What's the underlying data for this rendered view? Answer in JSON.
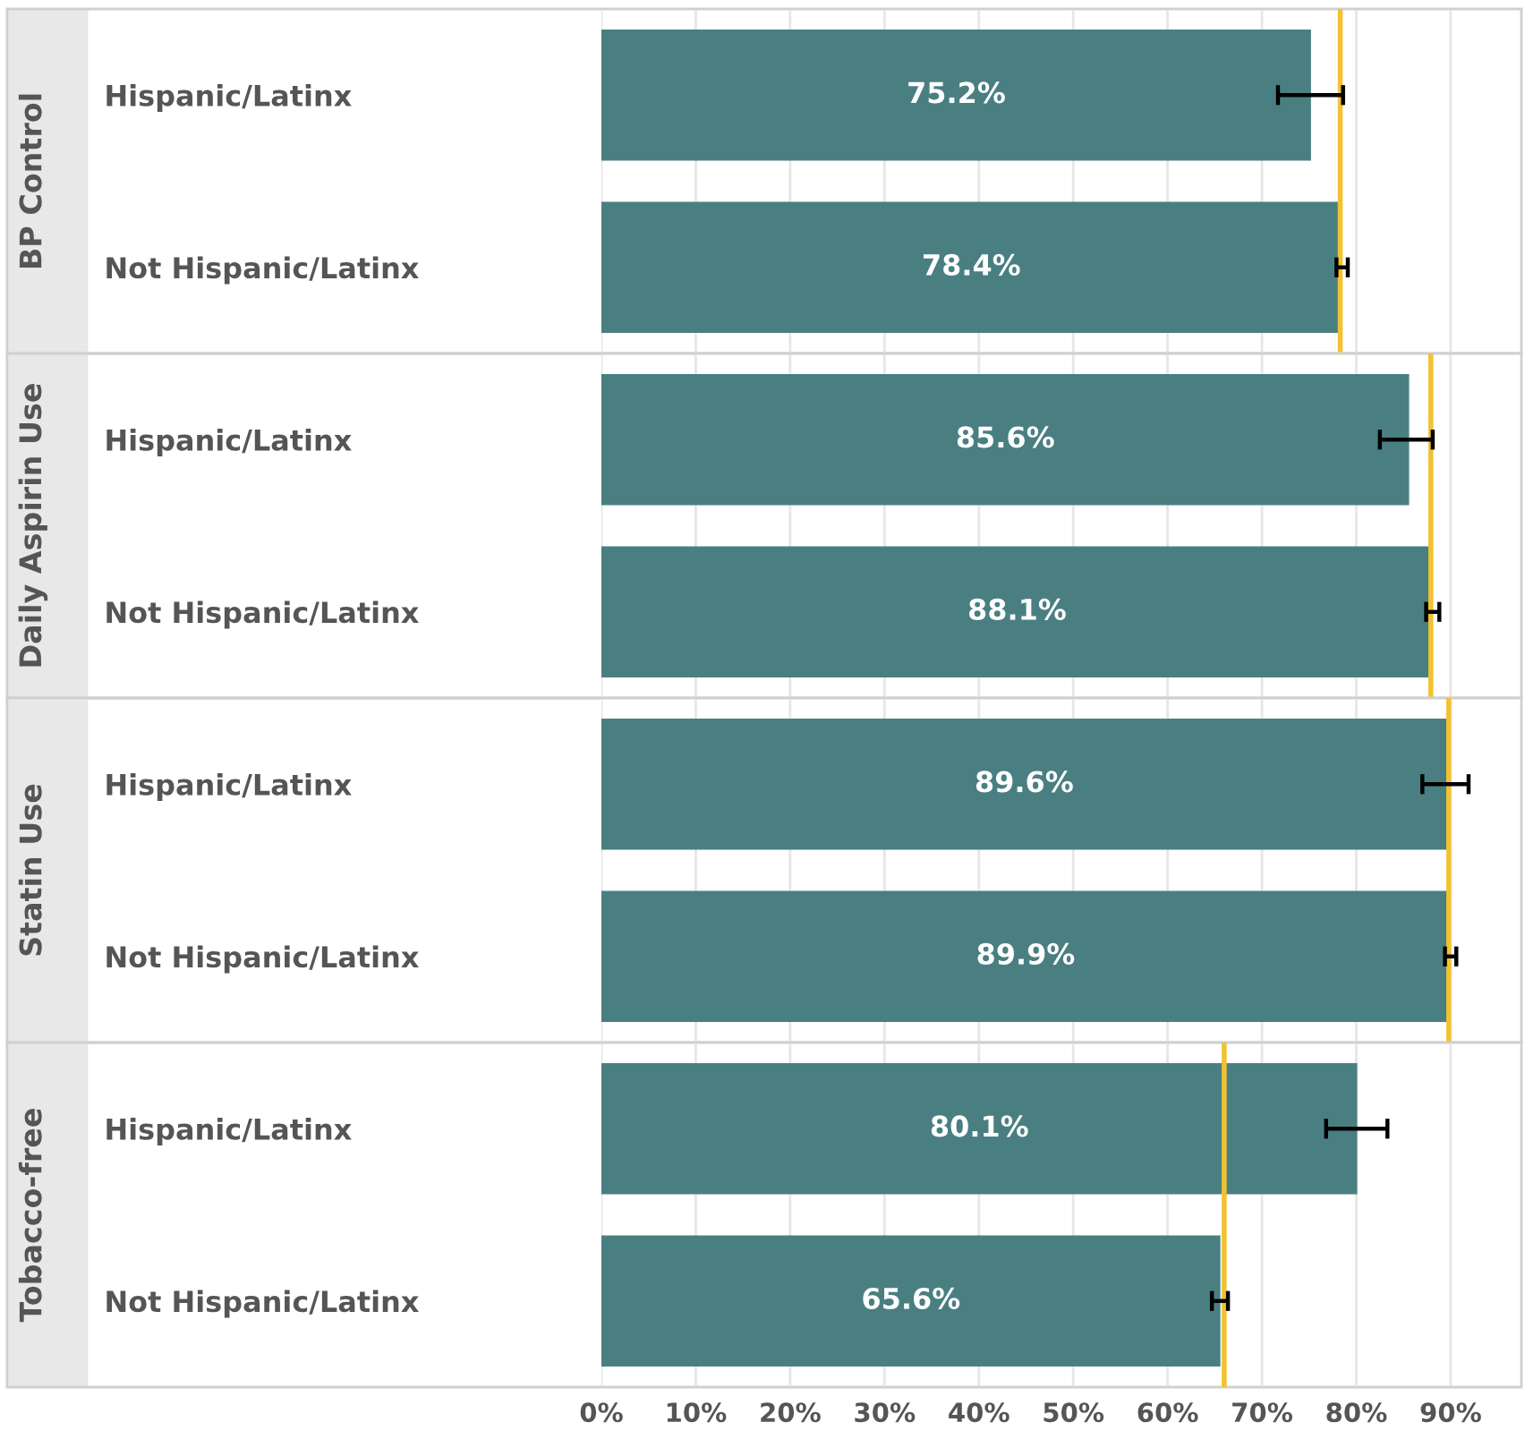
{
  "chart_data": [
    {
      "type": "bar",
      "orientation": "horizontal",
      "ylabel": "BP Control",
      "categories": [
        "Hispanic/Latinx",
        "Not Hispanic/Latinx"
      ],
      "values": [
        75.2,
        78.4
      ],
      "color": "#4a7f82",
      "errors": [
        [
          71.7,
          78.6
        ],
        [
          77.9,
          79.1
        ]
      ],
      "value_labels": [
        "75.2%",
        "78.4%"
      ],
      "ref_lines": [
        {
          "axis": "x",
          "value": 78.3,
          "color": "#f2c230"
        }
      ],
      "xlim": [
        0,
        97.5
      ],
      "xticks": [
        {
          "value": 0,
          "label": null
        },
        {
          "value": 10,
          "label": null
        },
        {
          "value": 20,
          "label": null
        },
        {
          "value": 30,
          "label": null
        },
        {
          "value": 40,
          "label": null
        },
        {
          "value": 50,
          "label": null
        },
        {
          "value": 60,
          "label": null
        },
        {
          "value": 70,
          "label": null
        },
        {
          "value": 80,
          "label": null
        },
        {
          "value": 90,
          "label": null
        }
      ],
      "grid": "x",
      "tick_labels": "y"
    },
    {
      "type": "bar",
      "orientation": "horizontal",
      "ylabel": "Daily Aspirin Use",
      "categories": [
        "Hispanic/Latinx",
        "Not Hispanic/Latinx"
      ],
      "values": [
        85.6,
        88.1
      ],
      "color": "#4a7f82",
      "errors": [
        [
          82.5,
          88.1
        ],
        [
          87.4,
          88.8
        ]
      ],
      "value_labels": [
        "85.6%",
        "88.1%"
      ],
      "ref_lines": [
        {
          "axis": "x",
          "value": 87.9,
          "color": "#f2c230"
        }
      ],
      "xlim": [
        0,
        97.5
      ],
      "xticks": [
        {
          "value": 0,
          "label": null
        },
        {
          "value": 10,
          "label": null
        },
        {
          "value": 20,
          "label": null
        },
        {
          "value": 30,
          "label": null
        },
        {
          "value": 40,
          "label": null
        },
        {
          "value": 50,
          "label": null
        },
        {
          "value": 60,
          "label": null
        },
        {
          "value": 70,
          "label": null
        },
        {
          "value": 80,
          "label": null
        },
        {
          "value": 90,
          "label": null
        }
      ],
      "grid": "x",
      "tick_labels": "y"
    },
    {
      "type": "bar",
      "orientation": "horizontal",
      "ylabel": "Statin Use",
      "categories": [
        "Hispanic/Latinx",
        "Not Hispanic/Latinx"
      ],
      "values": [
        89.6,
        89.9
      ],
      "color": "#4a7f82",
      "errors": [
        [
          87.0,
          91.9
        ],
        [
          89.4,
          90.6
        ]
      ],
      "value_labels": [
        "89.6%",
        "89.9%"
      ],
      "ref_lines": [
        {
          "axis": "x",
          "value": 89.8,
          "color": "#f2c230"
        }
      ],
      "xlim": [
        0,
        97.5
      ],
      "xticks": [
        {
          "value": 0,
          "label": null
        },
        {
          "value": 10,
          "label": null
        },
        {
          "value": 20,
          "label": null
        },
        {
          "value": 30,
          "label": null
        },
        {
          "value": 40,
          "label": null
        },
        {
          "value": 50,
          "label": null
        },
        {
          "value": 60,
          "label": null
        },
        {
          "value": 70,
          "label": null
        },
        {
          "value": 80,
          "label": null
        },
        {
          "value": 90,
          "label": null
        }
      ],
      "grid": "x",
      "tick_labels": "y"
    },
    {
      "type": "bar",
      "orientation": "horizontal",
      "ylabel": "Tobacco-free",
      "categories": [
        "Hispanic/Latinx",
        "Not Hispanic/Latinx"
      ],
      "values": [
        80.1,
        65.6
      ],
      "color": "#4a7f82",
      "errors": [
        [
          76.8,
          83.3
        ],
        [
          64.7,
          66.4
        ]
      ],
      "value_labels": [
        "80.1%",
        "65.6%"
      ],
      "ref_lines": [
        {
          "axis": "x",
          "value": 66.0,
          "color": "#f2c230"
        }
      ],
      "xlim": [
        0,
        97.5
      ],
      "xticks": [
        {
          "value": 0,
          "label": "0%"
        },
        {
          "value": 10,
          "label": "10%"
        },
        {
          "value": 20,
          "label": "20%"
        },
        {
          "value": 30,
          "label": "30%"
        },
        {
          "value": 40,
          "label": "40%"
        },
        {
          "value": 50,
          "label": "50%"
        },
        {
          "value": 60,
          "label": "60%"
        },
        {
          "value": 70,
          "label": "70%"
        },
        {
          "value": 80,
          "label": "80%"
        },
        {
          "value": 90,
          "label": "90%"
        }
      ],
      "grid": "x"
    }
  ]
}
